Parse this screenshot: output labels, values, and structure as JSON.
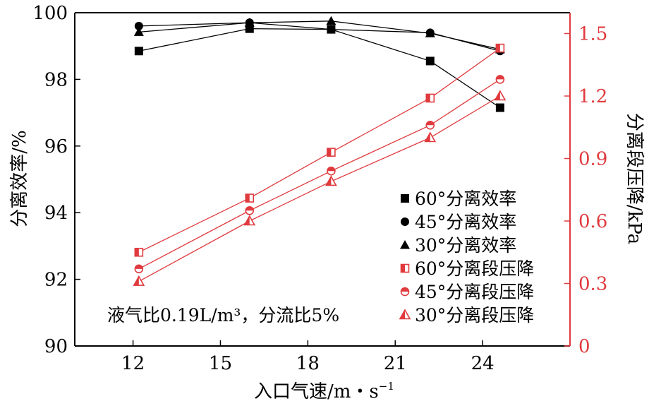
{
  "chart_data": {
    "type": "line",
    "x": [
      12.2,
      16.0,
      18.8,
      22.2,
      24.6
    ],
    "xlabel": "入口气速/m・s",
    "xlabel_sup": "−1",
    "xlim": [
      10,
      27
    ],
    "xticks": [
      12,
      15,
      18,
      21,
      24
    ],
    "y_left": {
      "label": "分离效率/%",
      "lim": [
        90,
        100
      ],
      "ticks": [
        90,
        92,
        94,
        96,
        98,
        100
      ]
    },
    "y_right": {
      "label": "分离段压降/kPa",
      "lim": [
        0,
        1.6
      ],
      "ticks": [
        "0",
        "0.3",
        "0.6",
        "0.9",
        "1.2",
        "1.5"
      ],
      "tick_values": [
        0,
        0.3,
        0.6,
        0.9,
        1.2,
        1.5
      ],
      "color": "#e03a3e"
    },
    "series": [
      {
        "name": "60°分离效率",
        "axis": "left",
        "marker": "square",
        "color": "#000000",
        "values": [
          98.85,
          99.52,
          99.5,
          98.55,
          97.15
        ]
      },
      {
        "name": "45°分离效率",
        "axis": "left",
        "marker": "circle",
        "color": "#000000",
        "values": [
          99.6,
          99.7,
          99.5,
          99.4,
          98.85
        ]
      },
      {
        "name": "30°分离效率",
        "axis": "left",
        "marker": "triangle",
        "color": "#000000",
        "values": [
          99.42,
          99.7,
          99.75,
          99.38,
          98.9
        ]
      },
      {
        "name": "60°分离段压降",
        "axis": "right",
        "marker": "half-square",
        "color": "#e03a3e",
        "values": [
          0.45,
          0.71,
          0.93,
          1.19,
          1.43
        ]
      },
      {
        "name": "45°分离段压降",
        "axis": "right",
        "marker": "half-circle",
        "color": "#e03a3e",
        "values": [
          0.37,
          0.65,
          0.84,
          1.06,
          1.28
        ]
      },
      {
        "name": "30°分离段压降",
        "axis": "right",
        "marker": "half-triangle",
        "color": "#e03a3e",
        "values": [
          0.31,
          0.6,
          0.79,
          1.0,
          1.2
        ]
      }
    ],
    "annotation": "液气比0.19L/m³，分流比5%",
    "legend_position": "right",
    "grid": false
  }
}
